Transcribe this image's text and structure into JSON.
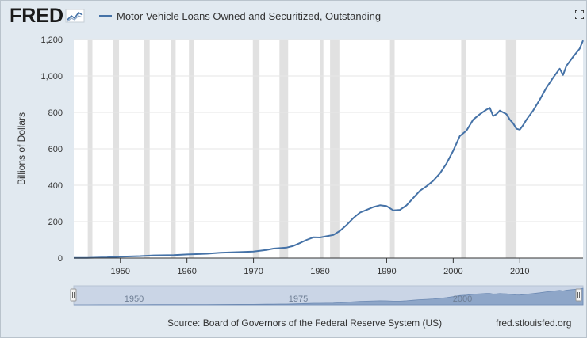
{
  "header": {
    "logo_text": "FRED",
    "legend_label": "Motor Vehicle Loans Owned and Securitized, Outstanding",
    "series_color": "#4572a7"
  },
  "footer": {
    "source": "Source: Board of Governors of the Federal Reserve System (US)",
    "site": "fred.stlouisfed.org"
  },
  "navigator": {
    "tick_labels": [
      "1950",
      "1975",
      "2000"
    ]
  },
  "chart_data": {
    "type": "line",
    "title": "",
    "xlabel": "",
    "ylabel": "Billions of Dollars",
    "xlim": [
      1943,
      2019.5
    ],
    "ylim": [
      0,
      1200
    ],
    "x_ticks": [
      1950,
      1960,
      1970,
      1980,
      1990,
      2000,
      2010
    ],
    "y_ticks": [
      0,
      200,
      400,
      600,
      800,
      1000,
      1200
    ],
    "y_tick_labels": [
      "0",
      "200",
      "400",
      "600",
      "800",
      "1,000",
      "1,200"
    ],
    "grid": "horizontal",
    "recessions": [
      [
        1945.1,
        1945.8
      ],
      [
        1948.9,
        1949.8
      ],
      [
        1953.5,
        1954.4
      ],
      [
        1957.6,
        1958.3
      ],
      [
        1960.3,
        1961.1
      ],
      [
        1969.9,
        1970.9
      ],
      [
        1973.9,
        1975.2
      ],
      [
        1980.0,
        1980.5
      ],
      [
        1981.5,
        1982.9
      ],
      [
        1990.5,
        1991.2
      ],
      [
        2001.2,
        2001.9
      ],
      [
        2007.9,
        2009.5
      ]
    ],
    "series": [
      {
        "name": "Motor Vehicle Loans Owned and Securitized, Outstanding",
        "x": [
          1943,
          1945,
          1948,
          1950,
          1953,
          1955,
          1958,
          1960,
          1963,
          1965,
          1968,
          1970,
          1972,
          1973,
          1974,
          1975,
          1976,
          1977,
          1978,
          1979,
          1980,
          1981,
          1982,
          1983,
          1984,
          1985,
          1986,
          1987,
          1988,
          1989,
          1990,
          1991,
          1992,
          1993,
          1994,
          1995,
          1996,
          1997,
          1998,
          1999,
          2000,
          2001,
          2002,
          2003,
          2004,
          2005,
          2005.5,
          2006,
          2006.5,
          2007,
          2007.5,
          2008,
          2008.5,
          2009,
          2009.5,
          2010,
          2010.5,
          2011,
          2012,
          2013,
          2014,
          2015,
          2016,
          2016.5,
          2017,
          2018,
          2019,
          2019.5
        ],
        "values": [
          1,
          1.5,
          4,
          8,
          11,
          15,
          16,
          20,
          24,
          29,
          33,
          36,
          45,
          52,
          55,
          58,
          67,
          83,
          100,
          114,
          113,
          120,
          127,
          150,
          182,
          220,
          250,
          265,
          280,
          290,
          285,
          262,
          265,
          290,
          330,
          370,
          395,
          425,
          465,
          520,
          590,
          670,
          700,
          760,
          790,
          815,
          825,
          780,
          790,
          810,
          800,
          790,
          760,
          740,
          710,
          705,
          730,
          760,
          810,
          870,
          935,
          990,
          1040,
          1005,
          1055,
          1105,
          1150,
          1195
        ]
      }
    ]
  }
}
